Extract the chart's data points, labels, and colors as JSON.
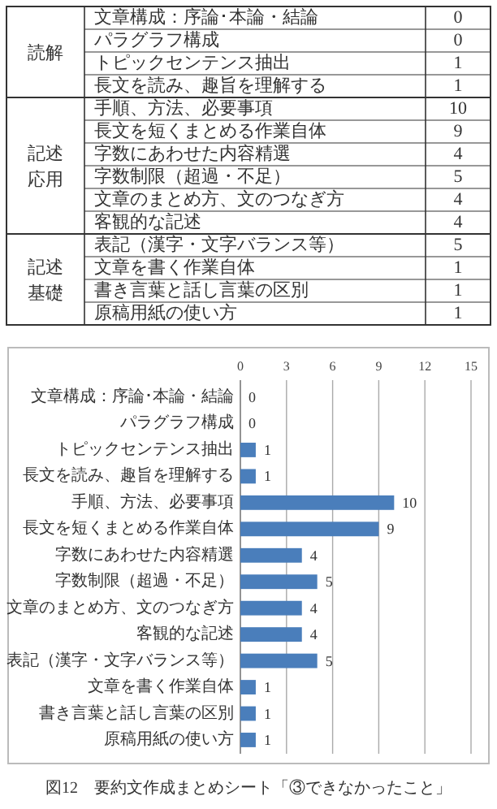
{
  "chart_data": [
    {
      "type": "other",
      "categories": [
        "文章構成：序論･本論・結論",
        "パラグラフ構成",
        "トピックセンテンス抽出",
        "長文を読み、趣旨を理解する",
        "手順、方法、必要事項",
        "長文を短くまとめる作業自体",
        "字数にあわせた内容精選",
        "字数制限（超過・不足）",
        "文章のまとめ方、文のつなぎ方",
        "客観的な記述",
        "表記（漢字・文字バランス等）",
        "文章を書く作業自体",
        "書き言葉と話し言葉の区別",
        "原稿用紙の使い方"
      ],
      "series": [
        {
          "name": "読解",
          "values": [
            0,
            0,
            1,
            1,
            null,
            null,
            null,
            null,
            null,
            null,
            null,
            null,
            null,
            null
          ]
        },
        {
          "name": "記述応用",
          "values": [
            null,
            null,
            null,
            null,
            10,
            9,
            4,
            5,
            4,
            4,
            null,
            null,
            null,
            null
          ]
        },
        {
          "name": "記述基礎",
          "values": [
            null,
            null,
            null,
            null,
            null,
            null,
            null,
            null,
            null,
            null,
            5,
            1,
            1,
            1
          ]
        }
      ],
      "data_labels": true
    },
    {
      "type": "bar",
      "orientation": "horizontal",
      "title": "図12　要約文作成まとめシート「③できなかったこと」",
      "categories": [
        "文章構成：序論･本論・結論",
        "パラグラフ構成",
        "トピックセンテンス抽出",
        "長文を読み、趣旨を理解する",
        "手順、方法、必要事項",
        "長文を短くまとめる作業自体",
        "字数にあわせた内容精選",
        "字数制限（超過・不足）",
        "文章のまとめ方、文のつなぎ方",
        "客観的な記述",
        "表記（漢字・文字バランス等）",
        "文章を書く作業自体",
        "書き言葉と話し言葉の区別",
        "原稿用紙の使い方"
      ],
      "values": [
        0,
        0,
        1,
        1,
        10,
        9,
        4,
        5,
        4,
        4,
        5,
        1,
        1,
        1
      ],
      "color": "#4a7ebb",
      "xlim": [
        0,
        15
      ],
      "xticks": [
        0,
        3,
        6,
        9,
        12,
        15
      ],
      "grid": "x",
      "data_labels": true
    }
  ]
}
